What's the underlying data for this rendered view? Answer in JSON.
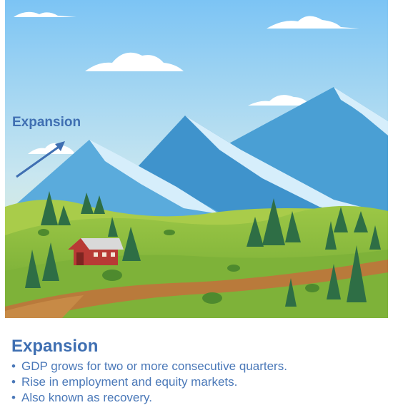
{
  "illustration": {
    "label": "Expansion",
    "colors": {
      "sky_top": "#7cc4f4",
      "sky_bottom": "#eef4c8",
      "mountain": "#4a9fd4",
      "snow": "#d6eefb",
      "grass": "#8cbd3a",
      "path": "#b97a3b",
      "tree": "#2e6e45",
      "barn": "#b83a35",
      "arrow": "#3f6fb2"
    }
  },
  "caption": {
    "title": "Expansion",
    "bullets": [
      "GDP grows for two or more consecutive quarters.",
      "Rise in employment and equity markets.",
      "Also known as recovery."
    ],
    "bullet_glyph": "•"
  }
}
